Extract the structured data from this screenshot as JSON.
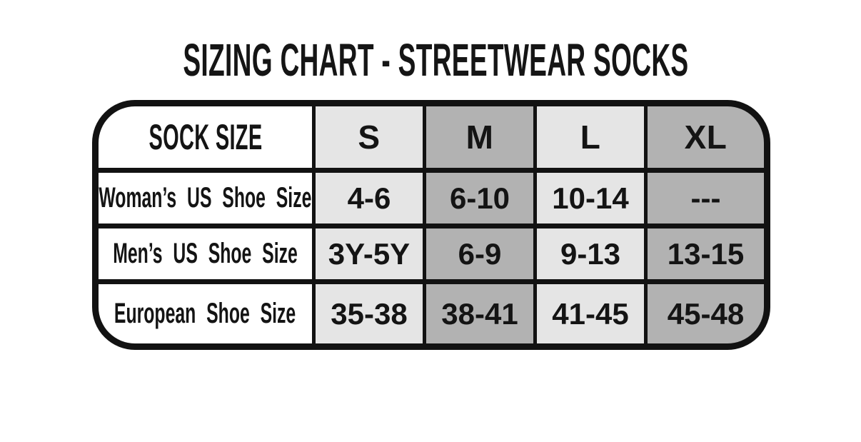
{
  "title": "SIZING CHART - STREETWEAR SOCKS",
  "chart_data": {
    "type": "table",
    "title": "SIZING CHART - STREETWEAR SOCKS",
    "columns": [
      "SOCK SIZE",
      "S",
      "M",
      "L",
      "XL"
    ],
    "rows": [
      {
        "label": "Woman’s US Shoe Size",
        "values": [
          "4-6",
          "6-10",
          "10-14",
          "---"
        ]
      },
      {
        "label": "Men’s US Shoe Size",
        "values": [
          "3Y-5Y",
          "6-9",
          "9-13",
          "13-15"
        ]
      },
      {
        "label": "European Shoe Size",
        "values": [
          "35-38",
          "38-41",
          "41-45",
          "45-48"
        ]
      }
    ],
    "layout": {
      "legend": "none",
      "grid": "on",
      "column_fills": [
        "#ffffff",
        "#e5e5e5",
        "#b2b2b2",
        "#e5e5e5",
        "#b2b2b2"
      ]
    }
  },
  "colors": {
    "background": "#ffffff",
    "border": "#121212",
    "text": "#141414",
    "light_cell": "#e5e5e5",
    "dark_cell": "#b2b2b2",
    "label_cell": "#ffffff"
  }
}
